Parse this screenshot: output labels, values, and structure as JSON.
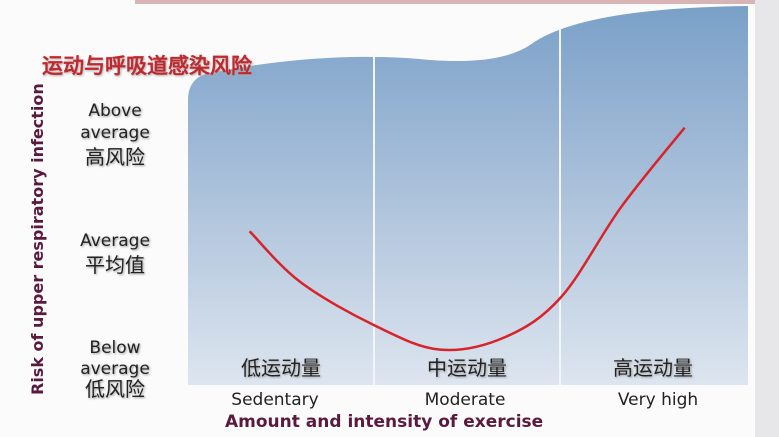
{
  "chart_data": {
    "type": "line",
    "title": "运动与呼吸道感染风险",
    "xlabel": "Amount and intensity of exercise",
    "ylabel": "Risk of upper respiratory infection",
    "categories": [
      {
        "en": "Sedentary",
        "zh": "低运动量"
      },
      {
        "en": "Moderate",
        "zh": "中运动量"
      },
      {
        "en": "Very high",
        "zh": "高运动量"
      }
    ],
    "y_ticks": [
      {
        "en": "Below average",
        "zh": "低风险",
        "value": 0
      },
      {
        "en": "Average",
        "zh": "平均值",
        "value": 1
      },
      {
        "en": "Above average",
        "zh": "高风险",
        "value": 2
      }
    ],
    "xlim": [
      0,
      3
    ],
    "ylim": [
      -0.2,
      2.5
    ],
    "grid": false,
    "series": [
      {
        "color": "#d8232a",
        "x": [
          0.33,
          0.6,
          1.0,
          1.35,
          1.7,
          2.0,
          2.32,
          2.66
        ],
        "y": [
          1.12,
          0.68,
          0.3,
          0.09,
          0.2,
          0.55,
          1.33,
          2.02
        ]
      }
    ]
  }
}
